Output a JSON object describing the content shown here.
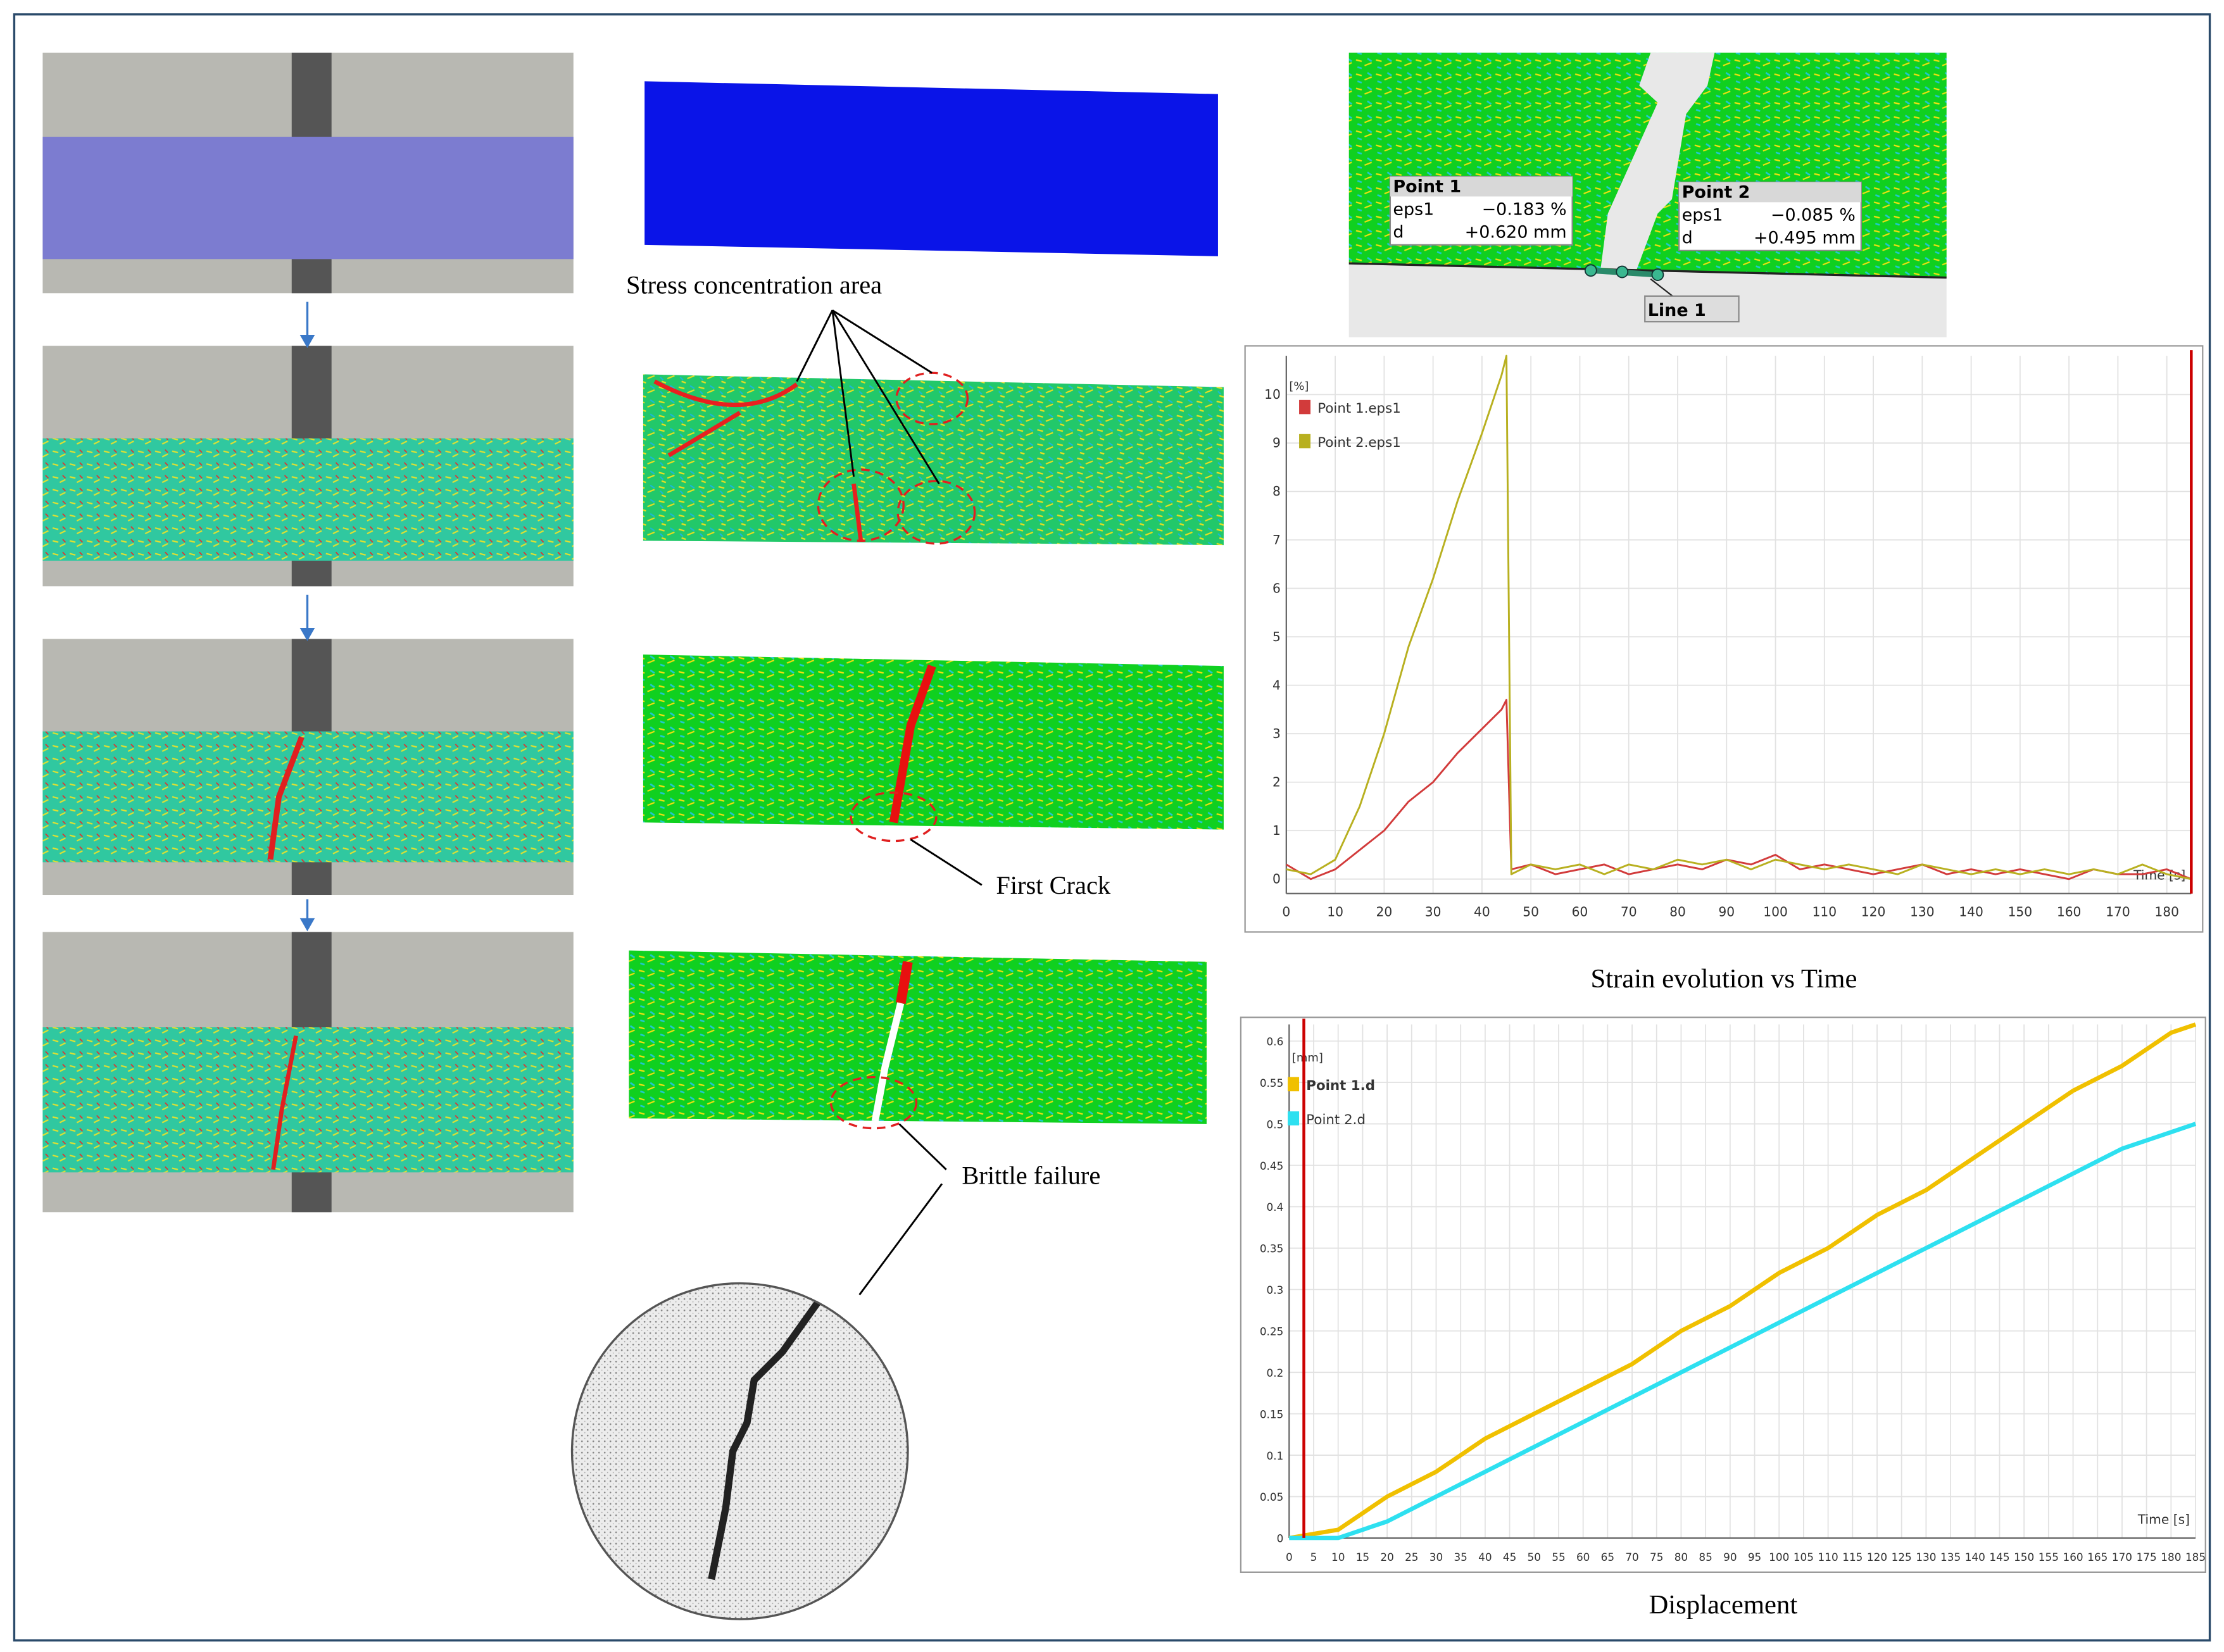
{
  "chart_data": [
    {
      "type": "line",
      "title": "Strain evolution vs Time",
      "ylabel": "[%]",
      "xlabel": "Time [s]",
      "x": [
        0,
        5,
        10,
        15,
        20,
        25,
        30,
        35,
        40,
        44,
        45,
        46,
        50,
        55,
        60,
        65,
        70,
        75,
        80,
        85,
        90,
        95,
        100,
        105,
        110,
        115,
        120,
        125,
        130,
        135,
        140,
        145,
        150,
        155,
        160,
        165,
        170,
        175,
        180,
        185
      ],
      "series": [
        {
          "name": "Point 1.eps1",
          "color": "#d23b3b",
          "values": [
            0.3,
            0.0,
            0.2,
            0.6,
            1.0,
            1.6,
            2.0,
            2.6,
            3.1,
            3.5,
            3.7,
            0.2,
            0.3,
            0.1,
            0.2,
            0.3,
            0.1,
            0.2,
            0.3,
            0.2,
            0.4,
            0.3,
            0.5,
            0.2,
            0.3,
            0.2,
            0.1,
            0.2,
            0.3,
            0.1,
            0.2,
            0.1,
            0.2,
            0.1,
            0.0,
            0.2,
            0.1,
            0.1,
            0.2,
            0.0
          ]
        },
        {
          "name": "Point 2.eps1",
          "color": "#b8b020",
          "values": [
            0.2,
            0.1,
            0.4,
            1.5,
            3.0,
            4.8,
            6.2,
            7.8,
            9.2,
            10.4,
            10.8,
            0.1,
            0.3,
            0.2,
            0.3,
            0.1,
            0.3,
            0.2,
            0.4,
            0.3,
            0.4,
            0.2,
            0.4,
            0.3,
            0.2,
            0.3,
            0.2,
            0.1,
            0.3,
            0.2,
            0.1,
            0.2,
            0.1,
            0.2,
            0.1,
            0.2,
            0.1,
            0.3,
            0.1,
            0.0
          ]
        }
      ],
      "xlim": [
        0,
        185
      ],
      "ylim": [
        -0.3,
        10.8
      ],
      "xticks": [
        0,
        10,
        20,
        30,
        40,
        50,
        60,
        70,
        80,
        90,
        100,
        110,
        120,
        130,
        140,
        150,
        160,
        170,
        180
      ],
      "yticks": [
        0,
        1,
        2,
        3,
        4,
        5,
        6,
        7,
        8,
        9,
        10
      ],
      "grid": true,
      "legend": "upper left",
      "cursor": 185
    },
    {
      "type": "line",
      "title": "Displacement",
      "ylabel": "[mm]",
      "xlabel": "Time [s]",
      "x": [
        0,
        10,
        20,
        30,
        40,
        50,
        60,
        70,
        80,
        90,
        100,
        110,
        120,
        130,
        140,
        150,
        160,
        170,
        180,
        185
      ],
      "series": [
        {
          "name": "Point 1.d",
          "color": "#f0c000",
          "values": [
            0,
            0.01,
            0.05,
            0.08,
            0.12,
            0.15,
            0.18,
            0.21,
            0.25,
            0.28,
            0.32,
            0.35,
            0.39,
            0.42,
            0.46,
            0.5,
            0.54,
            0.57,
            0.61,
            0.62
          ]
        },
        {
          "name": "Point 2.d",
          "color": "#2ee0f0",
          "values": [
            0,
            0.0,
            0.02,
            0.05,
            0.08,
            0.11,
            0.14,
            0.17,
            0.2,
            0.23,
            0.26,
            0.29,
            0.32,
            0.35,
            0.38,
            0.41,
            0.44,
            0.47,
            0.49,
            0.5
          ]
        }
      ],
      "xlim": [
        0,
        185
      ],
      "ylim": [
        0,
        0.62
      ],
      "xticks": [
        0,
        5,
        10,
        15,
        20,
        25,
        30,
        35,
        40,
        45,
        50,
        55,
        60,
        65,
        70,
        75,
        80,
        85,
        90,
        95,
        100,
        105,
        110,
        115,
        120,
        125,
        130,
        135,
        140,
        145,
        150,
        155,
        160,
        165,
        170,
        175,
        180,
        185
      ],
      "yticks": [
        0,
        0.05,
        0.1,
        0.15,
        0.2,
        0.25,
        0.3,
        0.35,
        0.4,
        0.45,
        0.5,
        0.55,
        0.6
      ],
      "grid": true,
      "legend": "upper left",
      "cursor": 3
    }
  ],
  "annotations": {
    "stress": "Stress concentration area",
    "first_crack": "First Crack",
    "brittle": "Brittle failure"
  },
  "dic_overlay": {
    "point1": {
      "title": "Point 1",
      "rows": [
        [
          "eps1",
          "−0.183 %"
        ],
        [
          "d",
          "+0.620 mm"
        ]
      ]
    },
    "point2": {
      "title": "Point 2",
      "rows": [
        [
          "eps1",
          "−0.085 %"
        ],
        [
          "d",
          "+0.495 mm"
        ]
      ]
    },
    "line": "Line 1"
  }
}
